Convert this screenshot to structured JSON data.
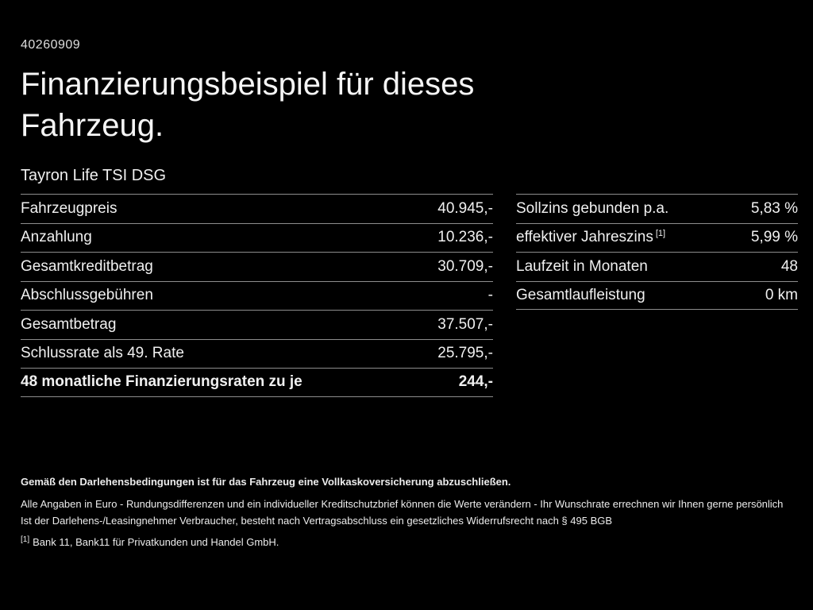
{
  "page": {
    "id_number": "40260909",
    "title_line1": "Finanzierungsbeispiel für dieses",
    "title_line2": "Fahrzeug.",
    "vehicle_name": "Tayron Life TSI DSG"
  },
  "left_table": {
    "rows": [
      {
        "label": "Fahrzeugpreis",
        "value": "40.945,-"
      },
      {
        "label": "Anzahlung",
        "value": "10.236,-"
      },
      {
        "label": "Gesamtkreditbetrag",
        "value": "30.709,-"
      },
      {
        "label": "Abschlussgebühren",
        "value": "-"
      },
      {
        "label": "Gesamtbetrag",
        "value": "37.507,-"
      },
      {
        "label": "Schlussrate als 49. Rate",
        "value": "25.795,-"
      },
      {
        "label": "48 monatliche Finanzierungsraten zu je",
        "value": "244,-"
      }
    ]
  },
  "right_table": {
    "rows": [
      {
        "label": "Sollzins gebunden p.a.",
        "value": "5,83 %"
      },
      {
        "label": "effektiver Jahreszins",
        "label_sup": "[1]",
        "value": "5,99 %"
      },
      {
        "label": "Laufzeit in Monaten",
        "value": "48"
      },
      {
        "label": "Gesamtlaufleistung",
        "value": "0 km"
      }
    ]
  },
  "footer": {
    "line_bold": "Gemäß den Darlehensbedingungen ist für das Fahrzeug eine Vollkaskoversicherung abzuschließen.",
    "line2": "Alle Angaben in Euro - Rundungsdifferenzen und ein individueller Kreditschutzbrief können die Werte verändern - Ihr Wunschrate errechnen wir Ihnen gerne persönlich",
    "line3": "Ist der Darlehens-/Leasingnehmer Verbraucher, besteht nach Vertragsabschluss ein gesetzliches Widerrufsrecht nach § 495 BGB",
    "footnote_marker": "[1]",
    "footnote_text": "Bank 11, Bank11 für Privatkunden und Handel GmbH."
  },
  "colors": {
    "background": "#000000",
    "text": "#f0f0f0",
    "divider": "#8d8d8d"
  }
}
